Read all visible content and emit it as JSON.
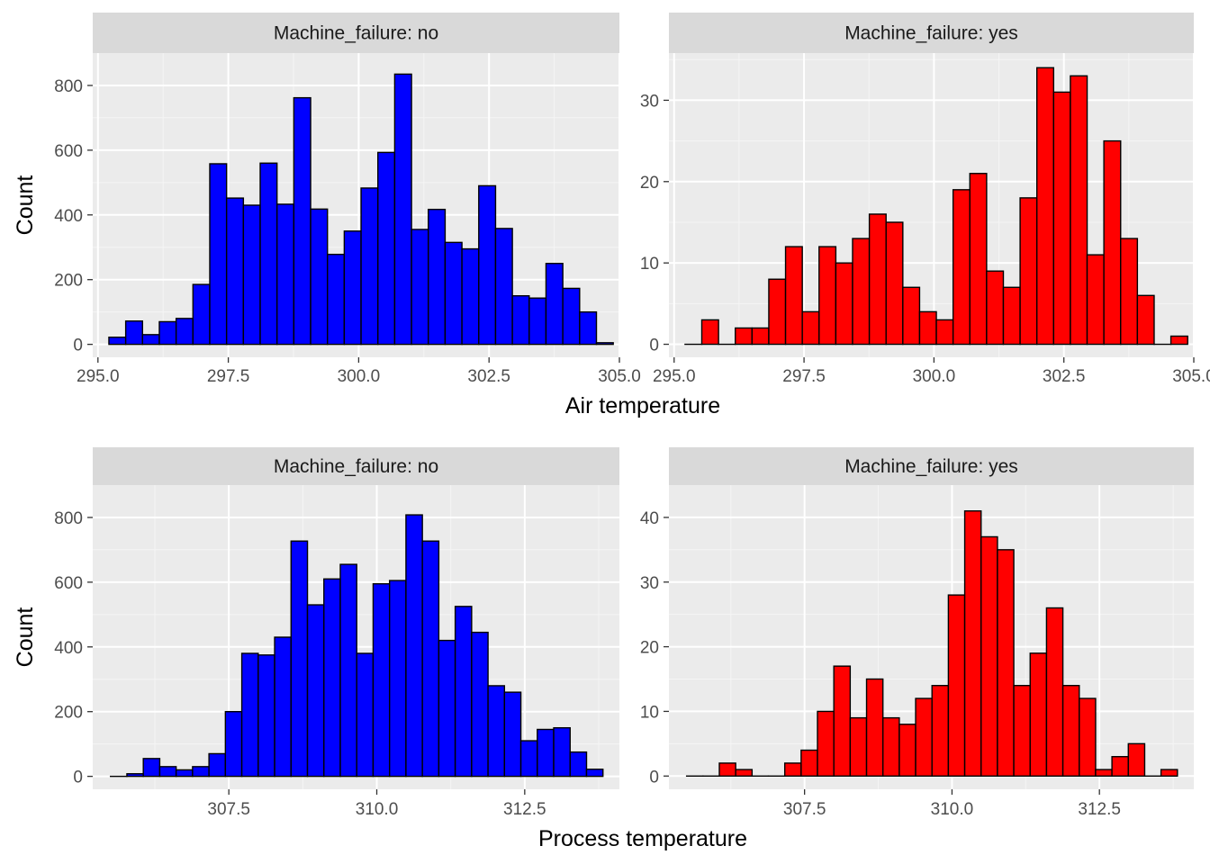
{
  "figure": {
    "rows": [
      {
        "xlabel": "Air temperature",
        "ylabel": "Count",
        "panels": [
          {
            "strip_label": "Machine_failure: no"
          },
          {
            "strip_label": "Machine_failure: yes"
          }
        ]
      },
      {
        "xlabel": "Process temperature",
        "ylabel": "Count",
        "panels": [
          {
            "strip_label": "Machine_failure: no"
          },
          {
            "strip_label": "Machine_failure: yes"
          }
        ]
      }
    ]
  },
  "chart_data": [
    {
      "type": "bar",
      "title": "Machine_failure: no",
      "xlabel": "Air temperature",
      "ylabel": "Count",
      "xlim": [
        294.9,
        305.0
      ],
      "ylim": [
        -40,
        900
      ],
      "x_ticks": [
        295.0,
        297.5,
        300.0,
        302.5,
        305.0
      ],
      "x_tick_labels": [
        "295.0",
        "297.5",
        "300.0",
        "302.5",
        "305.0"
      ],
      "y_ticks": [
        0,
        200,
        400,
        600,
        800
      ],
      "y_tick_labels": [
        "0",
        "200",
        "400",
        "600",
        "800"
      ],
      "bin_start": 295.21,
      "bin_width": 0.3224,
      "values": [
        22,
        72,
        30,
        70,
        80,
        185,
        558,
        452,
        430,
        560,
        433,
        762,
        418,
        278,
        350,
        483,
        593,
        835,
        355,
        417,
        315,
        295,
        490,
        358,
        150,
        143,
        250,
        173,
        100,
        5
      ],
      "fill": "#0000ff",
      "grid": true
    },
    {
      "type": "bar",
      "title": "Machine_failure: yes",
      "xlabel": "Air temperature",
      "ylabel": "Count",
      "xlim": [
        294.9,
        305.0
      ],
      "ylim": [
        -1.6,
        35.8
      ],
      "x_ticks": [
        295.0,
        297.5,
        300.0,
        302.5,
        305.0
      ],
      "x_tick_labels": [
        "295.0",
        "297.5",
        "300.0",
        "302.5",
        "305.0"
      ],
      "y_ticks": [
        0,
        10,
        20,
        30
      ],
      "y_tick_labels": [
        "0",
        "10",
        "20",
        "30"
      ],
      "bin_start": 295.21,
      "bin_width": 0.3224,
      "values": [
        0,
        3,
        0,
        2,
        2,
        8,
        12,
        4,
        12,
        10,
        13,
        16,
        15,
        7,
        4,
        3,
        19,
        21,
        9,
        7,
        18,
        34,
        31,
        33,
        11,
        25,
        13,
        6,
        0,
        1
      ],
      "fill": "#ff0000",
      "grid": true
    },
    {
      "type": "bar",
      "title": "Machine_failure: no",
      "xlabel": "Process temperature",
      "ylabel": "Count",
      "xlim": [
        305.2,
        314.1
      ],
      "ylim": [
        -40,
        900
      ],
      "x_ticks": [
        307.5,
        310.0,
        312.5
      ],
      "x_tick_labels": [
        "307.5",
        "310.0",
        "312.5"
      ],
      "y_ticks": [
        0,
        200,
        400,
        600,
        800
      ],
      "y_tick_labels": [
        "0",
        "200",
        "400",
        "600",
        "800"
      ],
      "bin_start": 305.5,
      "bin_width": 0.2774,
      "values": [
        0,
        8,
        55,
        30,
        20,
        30,
        70,
        200,
        380,
        375,
        430,
        727,
        530,
        610,
        655,
        380,
        595,
        605,
        808,
        727,
        420,
        525,
        445,
        280,
        260,
        110,
        145,
        150,
        75,
        22
      ],
      "fill": "#0000ff",
      "grid": true
    },
    {
      "type": "bar",
      "title": "Machine_failure: yes",
      "xlabel": "Process temperature",
      "ylabel": "Count",
      "xlim": [
        305.2,
        314.1
      ],
      "ylim": [
        -2.05,
        45.0
      ],
      "x_ticks": [
        307.5,
        310.0,
        312.5
      ],
      "x_tick_labels": [
        "307.5",
        "310.0",
        "312.5"
      ],
      "y_ticks": [
        0,
        10,
        20,
        30,
        40
      ],
      "y_tick_labels": [
        "0",
        "10",
        "20",
        "30",
        "40"
      ],
      "bin_start": 305.5,
      "bin_width": 0.2774,
      "values": [
        0,
        0,
        2,
        1,
        0,
        0,
        2,
        4,
        10,
        17,
        9,
        15,
        9,
        8,
        12,
        14,
        28,
        41,
        37,
        35,
        14,
        19,
        26,
        14,
        12,
        1,
        3,
        5,
        0,
        1
      ],
      "fill": "#ff0000",
      "grid": true
    }
  ]
}
